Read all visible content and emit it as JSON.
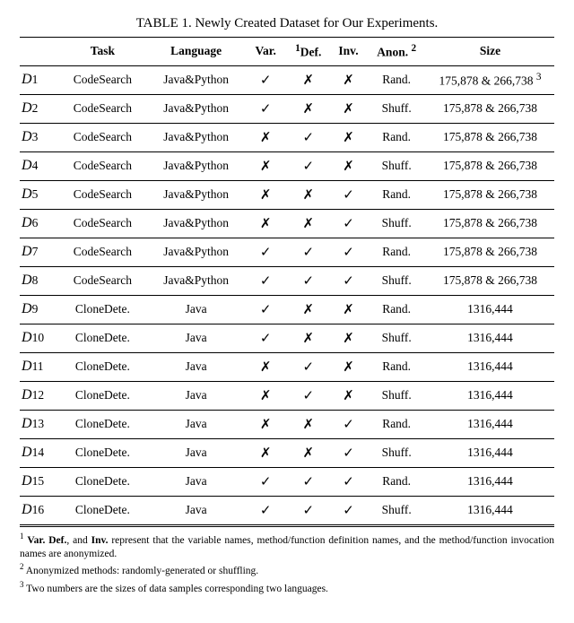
{
  "caption": "TABLE 1. Newly Created Dataset for Our Experiments.",
  "headers": {
    "blank": "",
    "task": "Task",
    "language": "Language",
    "var": "Var.",
    "def_sup": "1",
    "def": "Def.",
    "inv": "Inv.",
    "anon": "Anon.",
    "anon_sup": "2",
    "size": "Size"
  },
  "check_glyph": "✓",
  "cross_glyph": "✗",
  "rows": [
    {
      "id": "1",
      "task": "CodeSearch",
      "lang": "Java&Python",
      "var": true,
      "def": false,
      "inv": false,
      "anon": "Rand.",
      "size": "175,878 & 266,738",
      "size_sup": "3"
    },
    {
      "id": "2",
      "task": "CodeSearch",
      "lang": "Java&Python",
      "var": true,
      "def": false,
      "inv": false,
      "anon": "Shuff.",
      "size": "175,878 & 266,738"
    },
    {
      "id": "3",
      "task": "CodeSearch",
      "lang": "Java&Python",
      "var": false,
      "def": true,
      "inv": false,
      "anon": "Rand.",
      "size": "175,878 & 266,738"
    },
    {
      "id": "4",
      "task": "CodeSearch",
      "lang": "Java&Python",
      "var": false,
      "def": true,
      "inv": false,
      "anon": "Shuff.",
      "size": "175,878 & 266,738"
    },
    {
      "id": "5",
      "task": "CodeSearch",
      "lang": "Java&Python",
      "var": false,
      "def": false,
      "inv": true,
      "anon": "Rand.",
      "size": "175,878 & 266,738"
    },
    {
      "id": "6",
      "task": "CodeSearch",
      "lang": "Java&Python",
      "var": false,
      "def": false,
      "inv": true,
      "anon": "Shuff.",
      "size": "175,878 & 266,738"
    },
    {
      "id": "7",
      "task": "CodeSearch",
      "lang": "Java&Python",
      "var": true,
      "def": true,
      "inv": true,
      "anon": "Rand.",
      "size": "175,878 & 266,738"
    },
    {
      "id": "8",
      "task": "CodeSearch",
      "lang": "Java&Python",
      "var": true,
      "def": true,
      "inv": true,
      "anon": "Shuff.",
      "size": "175,878 & 266,738"
    },
    {
      "id": "9",
      "task": "CloneDete.",
      "lang": "Java",
      "var": true,
      "def": false,
      "inv": false,
      "anon": "Rand.",
      "size": "1316,444"
    },
    {
      "id": "10",
      "task": "CloneDete.",
      "lang": "Java",
      "var": true,
      "def": false,
      "inv": false,
      "anon": "Shuff.",
      "size": "1316,444"
    },
    {
      "id": "11",
      "task": "CloneDete.",
      "lang": "Java",
      "var": false,
      "def": true,
      "inv": false,
      "anon": "Rand.",
      "size": "1316,444"
    },
    {
      "id": "12",
      "task": "CloneDete.",
      "lang": "Java",
      "var": false,
      "def": true,
      "inv": false,
      "anon": "Shuff.",
      "size": "1316,444"
    },
    {
      "id": "13",
      "task": "CloneDete.",
      "lang": "Java",
      "var": false,
      "def": false,
      "inv": true,
      "anon": "Rand.",
      "size": "1316,444"
    },
    {
      "id": "14",
      "task": "CloneDete.",
      "lang": "Java",
      "var": false,
      "def": false,
      "inv": true,
      "anon": "Shuff.",
      "size": "1316,444"
    },
    {
      "id": "15",
      "task": "CloneDete.",
      "lang": "Java",
      "var": true,
      "def": true,
      "inv": true,
      "anon": "Rand.",
      "size": "1316,444"
    },
    {
      "id": "16",
      "task": "CloneDete.",
      "lang": "Java",
      "var": true,
      "def": true,
      "inv": true,
      "anon": "Shuff.",
      "size": "1316,444"
    }
  ],
  "footnotes": {
    "f1_sup": "1",
    "f1_strong": "Var. Def.",
    "f1_a": ", and ",
    "f1_strong2": "Inv.",
    "f1_b": " represent that the variable names, method/function definition names, and the method/function invocation names are anonymized.",
    "f2_sup": "2",
    "f2": " Anonymized methods: randomly-generated or shuffling.",
    "f3_sup": "3",
    "f3": " Two numbers are the sizes of data samples corresponding two languages."
  }
}
